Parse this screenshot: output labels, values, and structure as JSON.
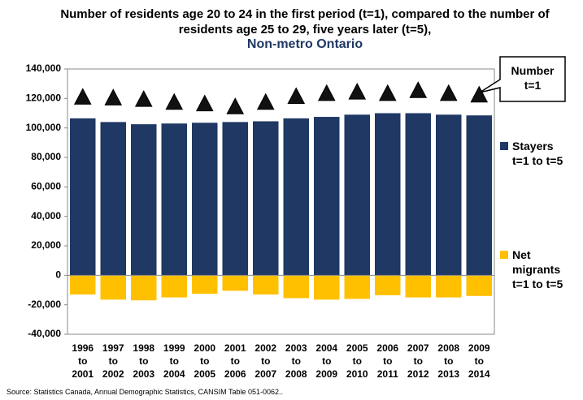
{
  "chart_data": {
    "type": "bar",
    "title": "Number of residents age 20 to 24 in the first period (t=1), compared to the number of residents age 25 to 29, five years later (t=5),",
    "subtitle": "Non-metro Ontario",
    "categories": [
      [
        "1996",
        "to",
        "2001"
      ],
      [
        "1997",
        "to",
        "2002"
      ],
      [
        "1998",
        "to",
        "2003"
      ],
      [
        "1999",
        "to",
        "2004"
      ],
      [
        "2000",
        "to",
        "2005"
      ],
      [
        "2001",
        "to",
        "2006"
      ],
      [
        "2002",
        "to",
        "2007"
      ],
      [
        "2003",
        "to",
        "2008"
      ],
      [
        "2004",
        "to",
        "2009"
      ],
      [
        "2005",
        "to",
        "2010"
      ],
      [
        "2006",
        "to",
        "2011"
      ],
      [
        "2007",
        "to",
        "2012"
      ],
      [
        "2008",
        "to",
        "2013"
      ],
      [
        "2009",
        "to",
        "2014"
      ]
    ],
    "series": [
      {
        "name": "Stayers t=1 to t=5",
        "color": "#1f3864",
        "values": [
          106500,
          104000,
          102500,
          103000,
          103500,
          104000,
          104500,
          106500,
          107500,
          109000,
          110000,
          110000,
          109000,
          108500
        ]
      },
      {
        "name": "Net migrants t=1 to t=5",
        "color": "#ffc000",
        "values": [
          -13000,
          -16500,
          -17000,
          -15000,
          -12500,
          -10500,
          -13000,
          -15500,
          -16500,
          -16000,
          -13500,
          -15000,
          -15000,
          -14000
        ]
      },
      {
        "name": "Number t=1",
        "color": "#111111",
        "marker": "triangle",
        "values": [
          120500,
          120000,
          119000,
          117000,
          116000,
          114000,
          117000,
          121000,
          123000,
          124000,
          123000,
          125000,
          123000,
          122000
        ]
      }
    ],
    "ylim": [
      -40000,
      140000
    ],
    "yticks": [
      {
        "value": -40000,
        "label": "-40,000"
      },
      {
        "value": -20000,
        "label": "-20,000"
      },
      0,
      {
        "value": 20000,
        "label": "20,000"
      },
      {
        "value": 40000,
        "label": "40,000"
      },
      {
        "value": 60000,
        "label": "60,000"
      },
      {
        "value": 80000,
        "label": "80,000"
      },
      {
        "value": 100000,
        "label": "100,000"
      },
      {
        "value": 120000,
        "label": "120,000"
      },
      {
        "value": 140000,
        "label": "140,000"
      }
    ],
    "source": "Source: Statistics Canada, Annual Demographic Statistics, CANSIM Table 051-0062.."
  }
}
